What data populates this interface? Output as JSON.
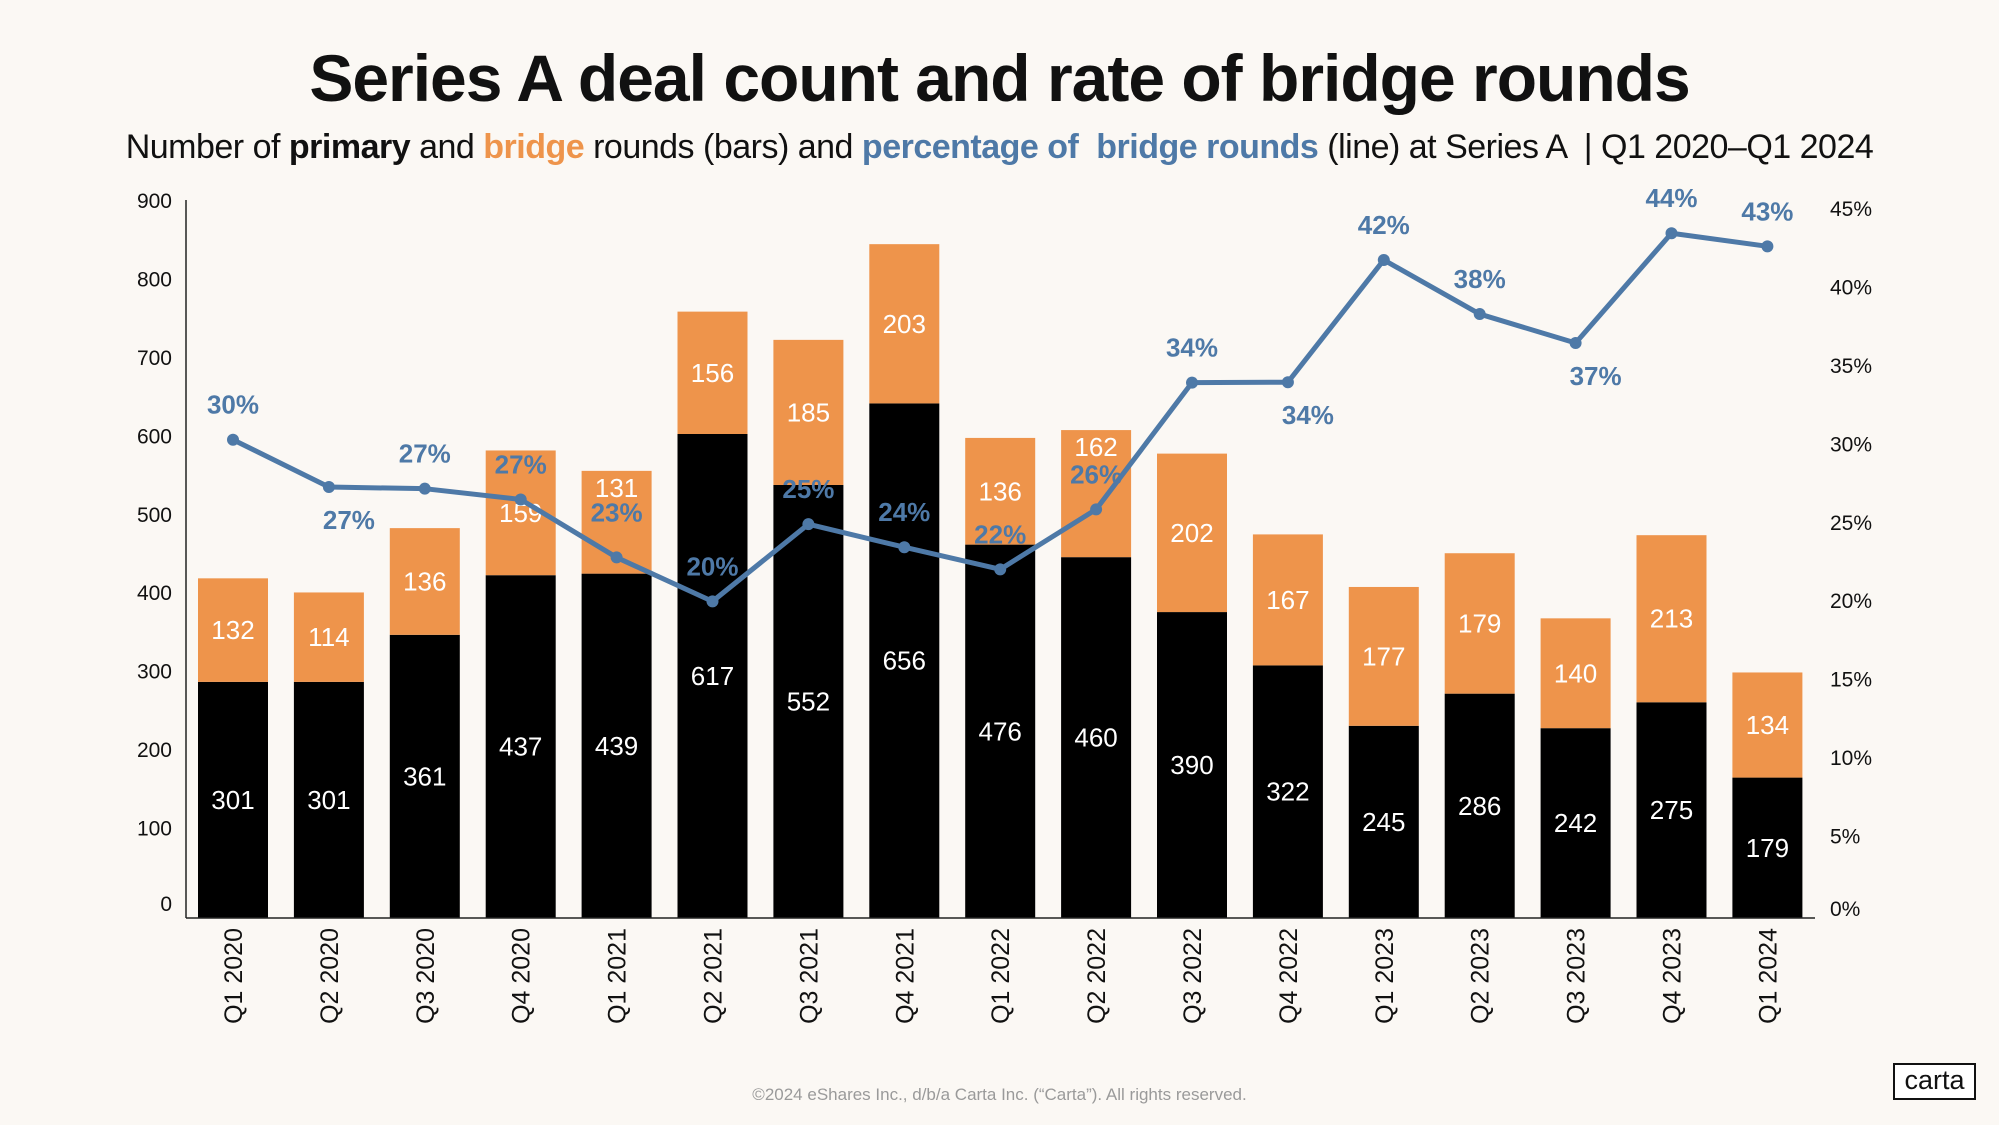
{
  "title": "Series A deal count and rate of bridge rounds",
  "subtitle": {
    "p1": "Number of ",
    "primary": "primary",
    "p2": " and ",
    "bridge": "bridge",
    "p3": " rounds (bars) and ",
    "pct": "percentage of  bridge rounds",
    "p4": " (line) at Series A  | Q1 2020–Q1 2024"
  },
  "footer": "©2024 eShares Inc., d/b/a Carta Inc. (“Carta”). All rights reserved.",
  "logo": "carta",
  "colors": {
    "primary": "#000000",
    "bridge": "#EE944B",
    "line": "#4E79A7",
    "background": "#FBF8F4"
  },
  "chart_data": {
    "type": "bar",
    "stacked": true,
    "categories": [
      "Q1 2020",
      "Q2 2020",
      "Q3 2020",
      "Q4 2020",
      "Q1 2021",
      "Q2 2021",
      "Q3 2021",
      "Q4 2021",
      "Q1 2022",
      "Q2 2022",
      "Q3 2022",
      "Q4 2022",
      "Q1 2023",
      "Q2 2023",
      "Q3 2023",
      "Q4 2023",
      "Q1 2024"
    ],
    "series": [
      {
        "name": "primary",
        "type": "bar",
        "values": [
          301,
          301,
          361,
          437,
          439,
          617,
          552,
          656,
          476,
          460,
          390,
          322,
          245,
          286,
          242,
          275,
          179
        ]
      },
      {
        "name": "bridge",
        "type": "bar",
        "values": [
          132,
          114,
          136,
          159,
          131,
          156,
          185,
          203,
          136,
          162,
          202,
          167,
          177,
          179,
          140,
          213,
          134
        ]
      },
      {
        "name": "percentage of bridge rounds",
        "type": "line",
        "axis": "right",
        "values": [
          30,
          27,
          27,
          27,
          23,
          20,
          25,
          24,
          22,
          26,
          34,
          34,
          42,
          38,
          37,
          44,
          43
        ],
        "labels": [
          "30%",
          "27%",
          "27%",
          "27%",
          "23%",
          "20%",
          "25%",
          "24%",
          "22%",
          "26%",
          "34%",
          "34%",
          "42%",
          "38%",
          "37%",
          "44%",
          "43%"
        ]
      }
    ],
    "ylim": [
      0,
      900
    ],
    "yticks": [
      "0",
      "100",
      "200",
      "300",
      "400",
      "500",
      "600",
      "700",
      "800",
      "900"
    ],
    "y2lim": [
      0,
      45
    ],
    "y2ticks": [
      "0%",
      "5%",
      "10%",
      "15%",
      "20%",
      "25%",
      "30%",
      "35%",
      "40%",
      "45%"
    ],
    "grid": false,
    "legend": "none"
  }
}
